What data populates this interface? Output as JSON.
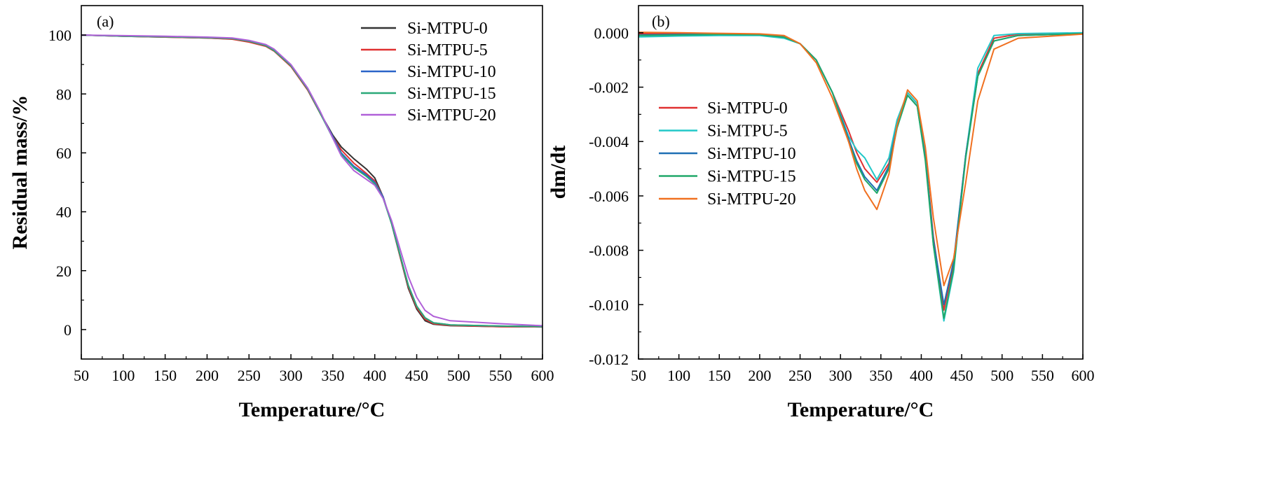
{
  "chart_data": [
    {
      "panel_label": "(a)",
      "type": "line",
      "xlabel": "Temperature/°C",
      "ylabel": "Residual mass/%",
      "xlim": [
        50,
        600
      ],
      "ylim": [
        -10,
        110
      ],
      "xticks": [
        50,
        100,
        150,
        200,
        250,
        300,
        350,
        400,
        450,
        500,
        550,
        600
      ],
      "yticks": [
        0,
        20,
        40,
        60,
        80,
        100
      ],
      "legend_position": "top-right",
      "grid": false,
      "series": [
        {
          "name": "Si-MTPU-0",
          "color": "#333333",
          "points": [
            [
              50,
              100
            ],
            [
              100,
              99.6
            ],
            [
              150,
              99.3
            ],
            [
              200,
              99.0
            ],
            [
              230,
              98.7
            ],
            [
              250,
              97.8
            ],
            [
              270,
              96.3
            ],
            [
              280,
              94.6
            ],
            [
              300,
              89.5
            ],
            [
              320,
              81.5
            ],
            [
              335,
              73.5
            ],
            [
              350,
              66
            ],
            [
              360,
              62
            ],
            [
              375,
              58
            ],
            [
              390,
              54.5
            ],
            [
              400,
              51.5
            ],
            [
              410,
              45
            ],
            [
              420,
              36
            ],
            [
              430,
              25
            ],
            [
              440,
              14
            ],
            [
              450,
              7
            ],
            [
              460,
              3
            ],
            [
              470,
              1.8
            ],
            [
              490,
              1.3
            ],
            [
              550,
              1.0
            ],
            [
              600,
              0.9
            ]
          ]
        },
        {
          "name": "Si-MTPU-5",
          "color": "#e03030",
          "points": [
            [
              50,
              100
            ],
            [
              100,
              99.6
            ],
            [
              150,
              99.3
            ],
            [
              200,
              99.0
            ],
            [
              230,
              98.6
            ],
            [
              250,
              97.6
            ],
            [
              270,
              96.2
            ],
            [
              280,
              94.5
            ],
            [
              300,
              89.3
            ],
            [
              320,
              81.3
            ],
            [
              335,
              73.3
            ],
            [
              350,
              65.5
            ],
            [
              360,
              61
            ],
            [
              375,
              56.5
            ],
            [
              390,
              53
            ],
            [
              400,
              50.5
            ],
            [
              410,
              45
            ],
            [
              420,
              36
            ],
            [
              430,
              25
            ],
            [
              440,
              14.5
            ],
            [
              450,
              7.5
            ],
            [
              460,
              3.5
            ],
            [
              470,
              2.0
            ],
            [
              490,
              1.4
            ],
            [
              550,
              1.0
            ],
            [
              600,
              0.9
            ]
          ]
        },
        {
          "name": "Si-MTPU-10",
          "color": "#2a64c8",
          "points": [
            [
              50,
              100
            ],
            [
              100,
              99.7
            ],
            [
              150,
              99.5
            ],
            [
              200,
              99.2
            ],
            [
              230,
              98.9
            ],
            [
              250,
              98.0
            ],
            [
              270,
              96.6
            ],
            [
              280,
              94.9
            ],
            [
              300,
              89.8
            ],
            [
              320,
              81.8
            ],
            [
              335,
              73.6
            ],
            [
              350,
              65.5
            ],
            [
              360,
              60
            ],
            [
              375,
              55.5
            ],
            [
              390,
              52.5
            ],
            [
              400,
              50
            ],
            [
              410,
              45
            ],
            [
              420,
              36
            ],
            [
              430,
              25.5
            ],
            [
              440,
              15
            ],
            [
              450,
              8
            ],
            [
              460,
              4
            ],
            [
              470,
              2.3
            ],
            [
              490,
              1.6
            ],
            [
              550,
              1.2
            ],
            [
              600,
              1.0
            ]
          ]
        },
        {
          "name": "Si-MTPU-15",
          "color": "#2aa878",
          "points": [
            [
              50,
              100
            ],
            [
              100,
              99.6
            ],
            [
              150,
              99.4
            ],
            [
              200,
              99.1
            ],
            [
              230,
              98.8
            ],
            [
              250,
              97.9
            ],
            [
              270,
              96.4
            ],
            [
              280,
              94.7
            ],
            [
              300,
              89.6
            ],
            [
              320,
              81.6
            ],
            [
              335,
              73.4
            ],
            [
              350,
              65
            ],
            [
              360,
              59.5
            ],
            [
              375,
              55
            ],
            [
              390,
              52
            ],
            [
              400,
              49.5
            ],
            [
              410,
              44.5
            ],
            [
              420,
              36
            ],
            [
              430,
              25.5
            ],
            [
              440,
              15
            ],
            [
              450,
              8
            ],
            [
              460,
              4
            ],
            [
              470,
              2.3
            ],
            [
              490,
              1.6
            ],
            [
              550,
              1.2
            ],
            [
              600,
              1.0
            ]
          ]
        },
        {
          "name": "Si-MTPU-20",
          "color": "#b060d8",
          "points": [
            [
              50,
              100
            ],
            [
              100,
              99.8
            ],
            [
              150,
              99.6
            ],
            [
              200,
              99.3
            ],
            [
              230,
              99.0
            ],
            [
              250,
              98.2
            ],
            [
              270,
              96.8
            ],
            [
              280,
              95.2
            ],
            [
              300,
              90
            ],
            [
              320,
              82
            ],
            [
              335,
              74
            ],
            [
              350,
              65
            ],
            [
              360,
              59
            ],
            [
              375,
              54
            ],
            [
              390,
              51
            ],
            [
              400,
              49
            ],
            [
              410,
              44.5
            ],
            [
              420,
              37
            ],
            [
              430,
              27.5
            ],
            [
              440,
              18
            ],
            [
              450,
              11
            ],
            [
              460,
              6.5
            ],
            [
              470,
              4.5
            ],
            [
              490,
              3.0
            ],
            [
              550,
              2.0
            ],
            [
              600,
              1.3
            ]
          ]
        }
      ]
    },
    {
      "panel_label": "(b)",
      "type": "line",
      "xlabel": "Temperature/°C",
      "ylabel": "dm/dt",
      "xlim": [
        50,
        600
      ],
      "ylim": [
        -0.012,
        0.001
      ],
      "xticks": [
        50,
        100,
        150,
        200,
        250,
        300,
        350,
        400,
        450,
        500,
        550,
        600
      ],
      "yticks": [
        "0.000",
        "-0.002",
        "-0.004",
        "-0.006",
        "-0.008",
        "-0.010",
        "-0.012"
      ],
      "legend_position": "middle-left",
      "grid": false,
      "series": [
        {
          "name": "Si-MTPU-0",
          "color": "#e03030",
          "points": [
            [
              50,
              -3e-05
            ],
            [
              100,
              -4e-05
            ],
            [
              150,
              -5e-05
            ],
            [
              200,
              -6e-05
            ],
            [
              230,
              -0.00015
            ],
            [
              250,
              -0.0004
            ],
            [
              270,
              -0.001
            ],
            [
              290,
              -0.0022
            ],
            [
              310,
              -0.0036
            ],
            [
              320,
              -0.0044
            ],
            [
              330,
              -0.005
            ],
            [
              345,
              -0.0055
            ],
            [
              360,
              -0.0048
            ],
            [
              370,
              -0.0033
            ],
            [
              383,
              -0.0022
            ],
            [
              395,
              -0.0026
            ],
            [
              405,
              -0.0045
            ],
            [
              415,
              -0.0075
            ],
            [
              428,
              -0.0102
            ],
            [
              440,
              -0.0085
            ],
            [
              455,
              -0.0045
            ],
            [
              470,
              -0.0015
            ],
            [
              490,
              -0.0002
            ],
            [
              520,
              -5e-05
            ],
            [
              600,
              -2e-05
            ]
          ]
        },
        {
          "name": "Si-MTPU-5",
          "color": "#22c8c8",
          "points": [
            [
              50,
              -0.00015
            ],
            [
              100,
              -0.00012
            ],
            [
              150,
              -0.0001
            ],
            [
              200,
              -0.0001
            ],
            [
              230,
              -0.0002
            ],
            [
              250,
              -0.0004
            ],
            [
              270,
              -0.001
            ],
            [
              290,
              -0.0022
            ],
            [
              310,
              -0.0038
            ],
            [
              320,
              -0.0043
            ],
            [
              330,
              -0.0046
            ],
            [
              345,
              -0.0054
            ],
            [
              360,
              -0.0046
            ],
            [
              370,
              -0.0032
            ],
            [
              383,
              -0.0022
            ],
            [
              395,
              -0.0026
            ],
            [
              405,
              -0.0045
            ],
            [
              415,
              -0.0078
            ],
            [
              428,
              -0.0106
            ],
            [
              440,
              -0.0088
            ],
            [
              455,
              -0.0045
            ],
            [
              470,
              -0.0013
            ],
            [
              490,
              -0.0001
            ],
            [
              520,
              -3e-05
            ],
            [
              600,
              0.0
            ]
          ]
        },
        {
          "name": "Si-MTPU-10",
          "color": "#1f6fb4",
          "points": [
            [
              50,
              -8e-05
            ],
            [
              100,
              -6e-05
            ],
            [
              150,
              -5e-05
            ],
            [
              200,
              -6e-05
            ],
            [
              230,
              -0.00015
            ],
            [
              250,
              -0.0004
            ],
            [
              270,
              -0.001
            ],
            [
              290,
              -0.0022
            ],
            [
              310,
              -0.0039
            ],
            [
              320,
              -0.0047
            ],
            [
              330,
              -0.0053
            ],
            [
              345,
              -0.0058
            ],
            [
              360,
              -0.0049
            ],
            [
              370,
              -0.0034
            ],
            [
              383,
              -0.0023
            ],
            [
              395,
              -0.0027
            ],
            [
              405,
              -0.0046
            ],
            [
              415,
              -0.0076
            ],
            [
              428,
              -0.01
            ],
            [
              440,
              -0.0084
            ],
            [
              455,
              -0.0045
            ],
            [
              470,
              -0.0016
            ],
            [
              490,
              -0.0003
            ],
            [
              520,
              -0.0001
            ],
            [
              600,
              -3e-05
            ]
          ]
        },
        {
          "name": "Si-MTPU-15",
          "color": "#20a86a",
          "points": [
            [
              50,
              -0.0001
            ],
            [
              100,
              -8e-05
            ],
            [
              150,
              -6e-05
            ],
            [
              200,
              -7e-05
            ],
            [
              230,
              -0.00016
            ],
            [
              250,
              -0.0004
            ],
            [
              270,
              -0.001
            ],
            [
              290,
              -0.0022
            ],
            [
              310,
              -0.004
            ],
            [
              320,
              -0.0048
            ],
            [
              330,
              -0.0054
            ],
            [
              345,
              -0.0059
            ],
            [
              360,
              -0.005
            ],
            [
              370,
              -0.0035
            ],
            [
              383,
              -0.0023
            ],
            [
              395,
              -0.0027
            ],
            [
              405,
              -0.0047
            ],
            [
              415,
              -0.0078
            ],
            [
              428,
              -0.0105
            ],
            [
              440,
              -0.0087
            ],
            [
              455,
              -0.0046
            ],
            [
              470,
              -0.0016
            ],
            [
              490,
              -0.0003
            ],
            [
              520,
              -0.0001
            ],
            [
              600,
              -3e-05
            ]
          ]
        },
        {
          "name": "Si-MTPU-20",
          "color": "#f07020",
          "points": [
            [
              50,
              2e-05
            ],
            [
              100,
              0.0
            ],
            [
              150,
              -2e-05
            ],
            [
              200,
              -4e-05
            ],
            [
              230,
              -0.0001
            ],
            [
              250,
              -0.0004
            ],
            [
              270,
              -0.0011
            ],
            [
              290,
              -0.0024
            ],
            [
              310,
              -0.004
            ],
            [
              320,
              -0.005
            ],
            [
              330,
              -0.0058
            ],
            [
              345,
              -0.0065
            ],
            [
              360,
              -0.0052
            ],
            [
              370,
              -0.0034
            ],
            [
              383,
              -0.0021
            ],
            [
              395,
              -0.0025
            ],
            [
              405,
              -0.0042
            ],
            [
              415,
              -0.0068
            ],
            [
              428,
              -0.0093
            ],
            [
              440,
              -0.0083
            ],
            [
              455,
              -0.0055
            ],
            [
              470,
              -0.0025
            ],
            [
              490,
              -0.0006
            ],
            [
              520,
              -0.0002
            ],
            [
              600,
              -5e-05
            ]
          ]
        }
      ]
    }
  ]
}
